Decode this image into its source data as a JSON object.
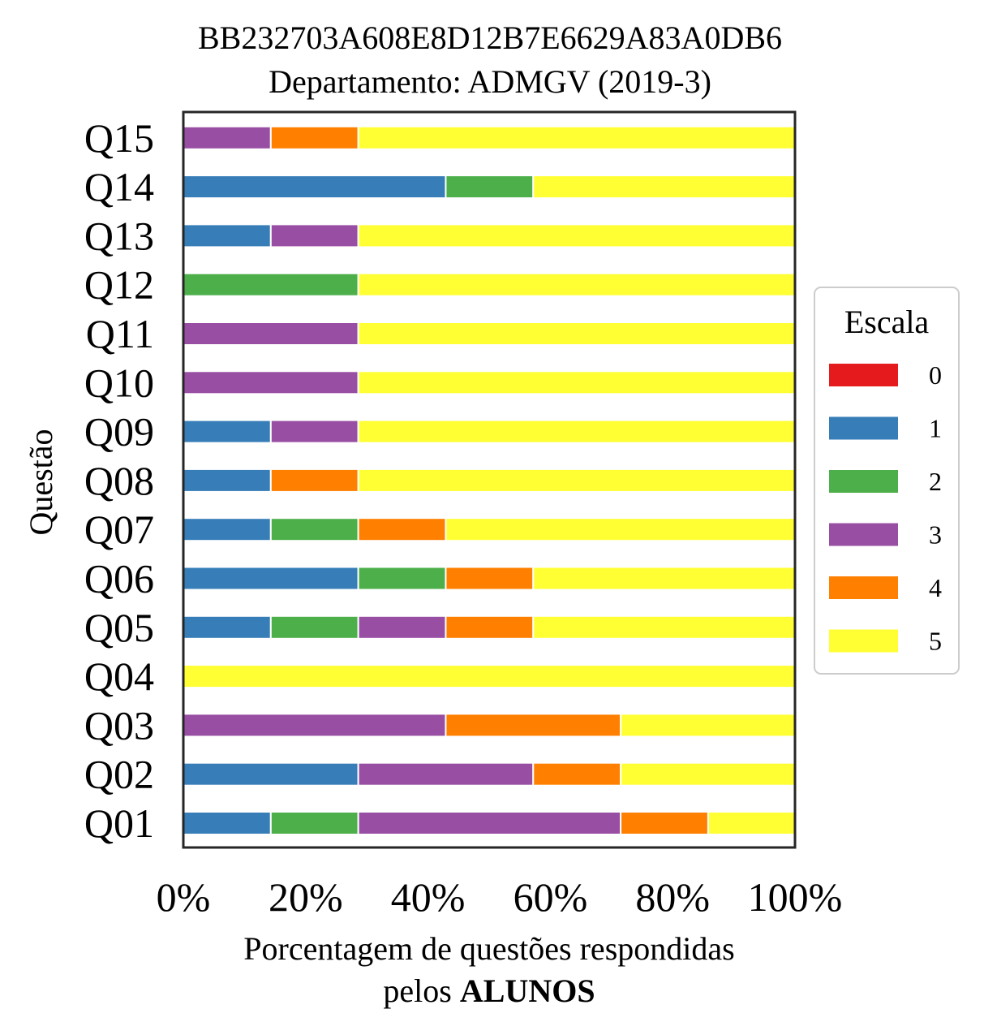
{
  "chart_data": {
    "type": "bar",
    "orientation": "horizontal",
    "stacked": true,
    "title_line1": "BB232703A608E8D12B7E6629A83A0DB6",
    "title_line2": "Departamento: ADMGV (2019-3)",
    "ylabel": "Questão",
    "xlabel_line1": "Porcentagem de questões respondidas",
    "xlabel_line2_prefix": "pelos ",
    "xlabel_line2_bold": "ALUNOS",
    "xlim": [
      0,
      100
    ],
    "x_ticks": [
      "0%",
      "20%",
      "40%",
      "60%",
      "80%",
      "100%"
    ],
    "x_tick_values": [
      0,
      20,
      40,
      60,
      80,
      100
    ],
    "grid": false,
    "legend_title": "Escala",
    "legend_position": "right",
    "categories": [
      "Q01",
      "Q02",
      "Q03",
      "Q04",
      "Q05",
      "Q06",
      "Q07",
      "Q08",
      "Q09",
      "Q10",
      "Q11",
      "Q12",
      "Q13",
      "Q14",
      "Q15"
    ],
    "series": [
      {
        "name": "0",
        "color": "#e41a1c",
        "values": [
          0,
          0,
          0,
          0,
          0,
          0,
          0,
          0,
          0,
          0,
          0,
          0,
          0,
          0,
          0
        ]
      },
      {
        "name": "1",
        "color": "#377eb8",
        "values": [
          14.3,
          28.6,
          0,
          0,
          14.3,
          28.6,
          14.3,
          14.3,
          14.3,
          0,
          0,
          0,
          14.3,
          42.9,
          0
        ]
      },
      {
        "name": "2",
        "color": "#4daf4a",
        "values": [
          14.3,
          0,
          0,
          0,
          14.3,
          14.3,
          14.3,
          0,
          0,
          0,
          0,
          28.6,
          0,
          14.3,
          0
        ]
      },
      {
        "name": "3",
        "color": "#984ea3",
        "values": [
          42.9,
          28.6,
          42.9,
          0,
          14.3,
          0,
          0,
          0,
          14.3,
          28.6,
          28.6,
          0,
          14.3,
          0,
          14.3
        ]
      },
      {
        "name": "4",
        "color": "#ff7f00",
        "values": [
          14.3,
          14.3,
          28.6,
          0,
          14.3,
          14.3,
          14.3,
          14.3,
          0,
          0,
          0,
          0,
          0,
          0,
          14.3
        ]
      },
      {
        "name": "5",
        "color": "#ffff33",
        "values": [
          14.2,
          28.5,
          28.5,
          100,
          42.8,
          42.8,
          57.1,
          71.4,
          71.4,
          71.4,
          71.4,
          71.4,
          71.4,
          42.8,
          71.4
        ]
      }
    ]
  }
}
